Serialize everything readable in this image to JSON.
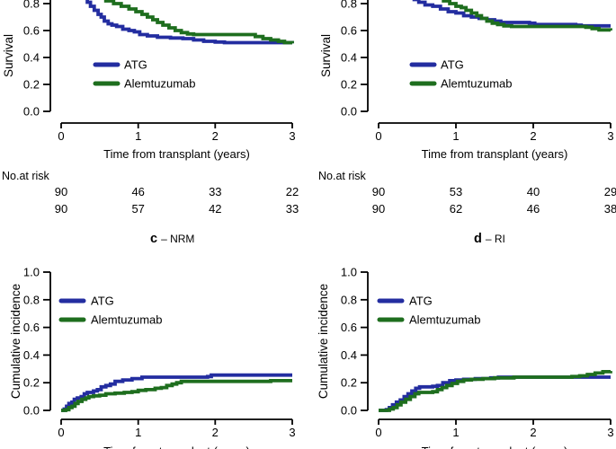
{
  "figure_title": "",
  "palette": {
    "atg_blue": "#232da0",
    "alemtuzumab_green": "#1e6e1e",
    "axis_black": "#000000",
    "background": "#ffffff"
  },
  "legend": {
    "atg_label": "ATG",
    "alemtuzumab_label": "Alemtuzumab"
  },
  "risk_header": "No.at risk",
  "xlabel": "Time from transplant (years)",
  "chart_data": [
    {
      "id": "panel-top-left",
      "type": "line",
      "subtype": "step-km",
      "ylabel": "Survival",
      "xlabel": "Time from transplant (years)",
      "xlim": [
        0,
        3
      ],
      "xticks": [
        0,
        1,
        2,
        3
      ],
      "yticks": [
        0.8,
        0.6,
        0.4,
        0.2,
        0.0
      ],
      "grid": false,
      "legend_position": "center-left",
      "series": [
        {
          "name": "ATG",
          "color": "#232da0",
          "points": [
            [
              0.25,
              0.9
            ],
            [
              0.3,
              0.84
            ],
            [
              0.34,
              0.81
            ],
            [
              0.38,
              0.78
            ],
            [
              0.43,
              0.75
            ],
            [
              0.48,
              0.72
            ],
            [
              0.52,
              0.7
            ],
            [
              0.56,
              0.67
            ],
            [
              0.61,
              0.65
            ],
            [
              0.66,
              0.64
            ],
            [
              0.72,
              0.63
            ],
            [
              0.8,
              0.61
            ],
            [
              0.88,
              0.6
            ],
            [
              0.95,
              0.59
            ],
            [
              1.02,
              0.57
            ],
            [
              1.12,
              0.56
            ],
            [
              1.25,
              0.55
            ],
            [
              1.42,
              0.545
            ],
            [
              1.58,
              0.54
            ],
            [
              1.72,
              0.53
            ],
            [
              1.85,
              0.52
            ],
            [
              2.0,
              0.515
            ],
            [
              2.12,
              0.51
            ],
            [
              3.0,
              0.505
            ]
          ]
        },
        {
          "name": "Alemtuzumab",
          "color": "#1e6e1e",
          "points": [
            [
              0.32,
              0.9
            ],
            [
              0.4,
              0.86
            ],
            [
              0.48,
              0.84
            ],
            [
              0.58,
              0.82
            ],
            [
              0.68,
              0.8
            ],
            [
              0.78,
              0.78
            ],
            [
              0.88,
              0.76
            ],
            [
              0.97,
              0.74
            ],
            [
              1.05,
              0.72
            ],
            [
              1.12,
              0.7
            ],
            [
              1.19,
              0.68
            ],
            [
              1.25,
              0.66
            ],
            [
              1.32,
              0.64
            ],
            [
              1.4,
              0.62
            ],
            [
              1.48,
              0.6
            ],
            [
              1.56,
              0.585
            ],
            [
              1.64,
              0.575
            ],
            [
              1.72,
              0.57
            ],
            [
              2.42,
              0.57
            ],
            [
              2.52,
              0.555
            ],
            [
              2.62,
              0.54
            ],
            [
              2.72,
              0.53
            ],
            [
              2.82,
              0.52
            ],
            [
              2.9,
              0.51
            ],
            [
              3.0,
              0.505
            ]
          ]
        }
      ],
      "risk_table": {
        "label": "No.at risk",
        "times": [
          0,
          1,
          2,
          3
        ],
        "rows": [
          {
            "name": "ATG",
            "counts": [
              "90",
              "46",
              "33",
              "22"
            ]
          },
          {
            "name": "Alemtuzumab",
            "counts": [
              "90",
              "57",
              "42",
              "33"
            ]
          }
        ]
      }
    },
    {
      "id": "panel-top-right",
      "type": "line",
      "subtype": "step-km",
      "ylabel": "Survival",
      "xlabel": "Time from transplant (years)",
      "xlim": [
        0,
        3
      ],
      "xticks": [
        0,
        1,
        2,
        3
      ],
      "yticks": [
        0.8,
        0.6,
        0.4,
        0.2,
        0.0
      ],
      "grid": false,
      "legend_position": "center-left",
      "series": [
        {
          "name": "ATG",
          "color": "#232da0",
          "points": [
            [
              0.4,
              0.88
            ],
            [
              0.46,
              0.83
            ],
            [
              0.52,
              0.81
            ],
            [
              0.6,
              0.79
            ],
            [
              0.7,
              0.78
            ],
            [
              0.8,
              0.76
            ],
            [
              0.9,
              0.74
            ],
            [
              1.0,
              0.73
            ],
            [
              1.1,
              0.71
            ],
            [
              1.2,
              0.7
            ],
            [
              1.3,
              0.69
            ],
            [
              1.4,
              0.68
            ],
            [
              1.5,
              0.67
            ],
            [
              1.58,
              0.66
            ],
            [
              1.95,
              0.655
            ],
            [
              2.02,
              0.645
            ],
            [
              2.55,
              0.64
            ],
            [
              2.62,
              0.635
            ],
            [
              3.0,
              0.635
            ]
          ]
        },
        {
          "name": "Alemtuzumab",
          "color": "#1e6e1e",
          "points": [
            [
              0.7,
              0.88
            ],
            [
              0.76,
              0.84
            ],
            [
              0.84,
              0.82
            ],
            [
              0.92,
              0.8
            ],
            [
              1.0,
              0.78
            ],
            [
              1.07,
              0.77
            ],
            [
              1.13,
              0.75
            ],
            [
              1.2,
              0.73
            ],
            [
              1.27,
              0.71
            ],
            [
              1.33,
              0.69
            ],
            [
              1.4,
              0.67
            ],
            [
              1.47,
              0.655
            ],
            [
              1.54,
              0.645
            ],
            [
              1.62,
              0.635
            ],
            [
              1.72,
              0.63
            ],
            [
              2.68,
              0.625
            ],
            [
              2.76,
              0.615
            ],
            [
              2.85,
              0.605
            ],
            [
              3.0,
              0.6
            ]
          ]
        }
      ],
      "risk_table": {
        "label": "No.at risk",
        "times": [
          0,
          1,
          2,
          3
        ],
        "rows": [
          {
            "name": "ATG",
            "counts": [
              "90",
              "53",
              "40",
              "29"
            ]
          },
          {
            "name": "Alemtuzumab",
            "counts": [
              "90",
              "62",
              "46",
              "38"
            ]
          }
        ]
      }
    },
    {
      "id": "panel-bottom-left",
      "type": "line",
      "subtype": "step-cuminc",
      "panel_label": {
        "letter": "c",
        "text": "– NRM"
      },
      "ylabel": "Cumulative incidence",
      "xlabel": "Time from transplant (years)",
      "xlim": [
        0,
        3
      ],
      "xticks": [
        0,
        1,
        2,
        3
      ],
      "yticks": [
        1.0,
        0.8,
        0.6,
        0.4,
        0.2,
        0.0
      ],
      "ylim": [
        0,
        1
      ],
      "grid": false,
      "legend_position": "top-left",
      "series": [
        {
          "name": "ATG",
          "color": "#232da0",
          "points": [
            [
              0,
              0
            ],
            [
              0.04,
              0.01
            ],
            [
              0.07,
              0.03
            ],
            [
              0.1,
              0.05
            ],
            [
              0.14,
              0.06
            ],
            [
              0.17,
              0.08
            ],
            [
              0.21,
              0.09
            ],
            [
              0.26,
              0.1
            ],
            [
              0.3,
              0.12
            ],
            [
              0.34,
              0.13
            ],
            [
              0.42,
              0.14
            ],
            [
              0.47,
              0.15
            ],
            [
              0.52,
              0.17
            ],
            [
              0.58,
              0.18
            ],
            [
              0.64,
              0.19
            ],
            [
              0.7,
              0.21
            ],
            [
              0.8,
              0.22
            ],
            [
              0.92,
              0.23
            ],
            [
              1.05,
              0.24
            ],
            [
              1.9,
              0.245
            ],
            [
              1.95,
              0.255
            ],
            [
              3.0,
              0.255
            ]
          ]
        },
        {
          "name": "Alemtuzumab",
          "color": "#1e6e1e",
          "points": [
            [
              0,
              0
            ],
            [
              0.06,
              0.005
            ],
            [
              0.1,
              0.02
            ],
            [
              0.14,
              0.03
            ],
            [
              0.18,
              0.05
            ],
            [
              0.22,
              0.065
            ],
            [
              0.27,
              0.08
            ],
            [
              0.32,
              0.09
            ],
            [
              0.36,
              0.1
            ],
            [
              0.42,
              0.105
            ],
            [
              0.5,
              0.11
            ],
            [
              0.58,
              0.12
            ],
            [
              0.7,
              0.125
            ],
            [
              0.82,
              0.13
            ],
            [
              0.92,
              0.135
            ],
            [
              1.0,
              0.145
            ],
            [
              1.1,
              0.15
            ],
            [
              1.22,
              0.16
            ],
            [
              1.3,
              0.165
            ],
            [
              1.37,
              0.18
            ],
            [
              1.44,
              0.19
            ],
            [
              1.5,
              0.2
            ],
            [
              1.56,
              0.21
            ],
            [
              2.65,
              0.21
            ],
            [
              2.72,
              0.215
            ],
            [
              3.0,
              0.215
            ]
          ]
        }
      ]
    },
    {
      "id": "panel-bottom-right",
      "type": "line",
      "subtype": "step-cuminc",
      "panel_label": {
        "letter": "d",
        "text": "– RI"
      },
      "ylabel": "Cumulative incidence",
      "xlabel": "Time from transplant (years)",
      "xlim": [
        0,
        3
      ],
      "xticks": [
        0,
        1,
        2,
        3
      ],
      "yticks": [
        1.0,
        0.8,
        0.6,
        0.4,
        0.2,
        0.0
      ],
      "ylim": [
        0,
        1
      ],
      "grid": false,
      "legend_position": "top-left",
      "series": [
        {
          "name": "ATG",
          "color": "#232da0",
          "points": [
            [
              0,
              0
            ],
            [
              0.1,
              0.005
            ],
            [
              0.14,
              0.02
            ],
            [
              0.18,
              0.04
            ],
            [
              0.23,
              0.06
            ],
            [
              0.28,
              0.075
            ],
            [
              0.33,
              0.1
            ],
            [
              0.38,
              0.12
            ],
            [
              0.43,
              0.14
            ],
            [
              0.48,
              0.16
            ],
            [
              0.53,
              0.17
            ],
            [
              0.7,
              0.175
            ],
            [
              0.76,
              0.18
            ],
            [
              0.83,
              0.2
            ],
            [
              0.92,
              0.215
            ],
            [
              1.0,
              0.22
            ],
            [
              1.1,
              0.225
            ],
            [
              1.25,
              0.23
            ],
            [
              1.45,
              0.235
            ],
            [
              1.55,
              0.24
            ],
            [
              3.0,
              0.24
            ]
          ]
        },
        {
          "name": "Alemtuzumab",
          "color": "#1e6e1e",
          "points": [
            [
              0,
              0
            ],
            [
              0.14,
              0.01
            ],
            [
              0.19,
              0.02
            ],
            [
              0.24,
              0.04
            ],
            [
              0.29,
              0.06
            ],
            [
              0.35,
              0.08
            ],
            [
              0.41,
              0.1
            ],
            [
              0.47,
              0.12
            ],
            [
              0.52,
              0.13
            ],
            [
              0.7,
              0.135
            ],
            [
              0.76,
              0.15
            ],
            [
              0.82,
              0.165
            ],
            [
              0.88,
              0.18
            ],
            [
              0.95,
              0.195
            ],
            [
              1.02,
              0.21
            ],
            [
              1.1,
              0.22
            ],
            [
              1.2,
              0.225
            ],
            [
              1.35,
              0.23
            ],
            [
              1.5,
              0.235
            ],
            [
              1.75,
              0.24
            ],
            [
              2.5,
              0.245
            ],
            [
              2.6,
              0.25
            ],
            [
              2.7,
              0.26
            ],
            [
              2.8,
              0.27
            ],
            [
              2.9,
              0.28
            ],
            [
              3.0,
              0.285
            ]
          ]
        }
      ]
    }
  ]
}
